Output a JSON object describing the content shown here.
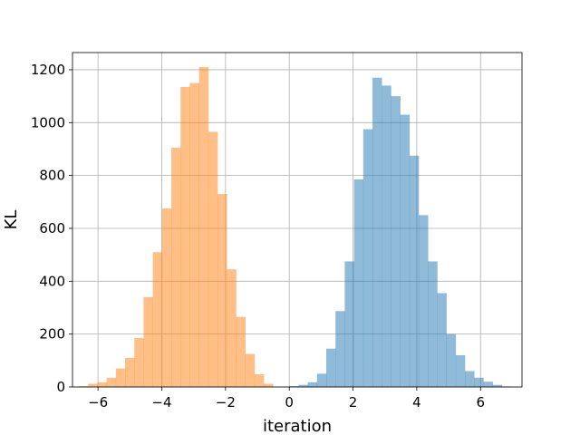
{
  "chart_data": {
    "type": "bar",
    "xlabel": "iteration",
    "ylabel": "KL",
    "xlim": [
      -6.8,
      7.3
    ],
    "ylim": [
      0,
      1265
    ],
    "grid": true,
    "x_ticks": [
      -6,
      -4,
      -2,
      0,
      2,
      4,
      6
    ],
    "y_ticks": [
      0,
      200,
      400,
      600,
      800,
      1000,
      1200
    ],
    "x_tick_labels": [
      "−6",
      "−4",
      "−2",
      "0",
      "2",
      "4",
      "6"
    ],
    "y_tick_labels": [
      "0",
      "200",
      "400",
      "600",
      "800",
      "1000",
      "1200"
    ],
    "series": [
      {
        "color": "#1f77b4",
        "opacity": 0.5,
        "bin_start": 0.0,
        "bin_width": 0.29,
        "values": [
          3,
          8,
          18,
          50,
          145,
          287,
          475,
          785,
          975,
          1170,
          1140,
          1100,
          1030,
          875,
          650,
          475,
          355,
          200,
          120,
          60,
          35,
          20,
          8,
          2
        ]
      },
      {
        "color": "#ff7f0e",
        "opacity": 0.5,
        "bin_start": -6.6,
        "bin_width": 0.29,
        "values": [
          3,
          12,
          18,
          35,
          70,
          110,
          185,
          340,
          510,
          675,
          905,
          1135,
          1150,
          1210,
          965,
          730,
          445,
          265,
          125,
          48,
          12
        ]
      }
    ]
  }
}
